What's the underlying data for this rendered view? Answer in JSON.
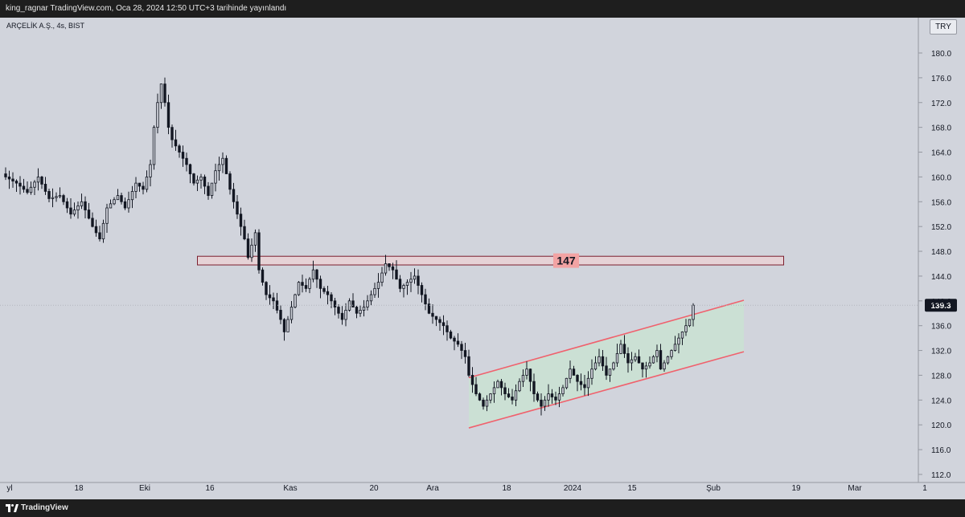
{
  "header": {
    "published_text": "king_ragnar TradingView.com, Oca 28, 2024 12:50 UTC+3 tarihinde yayınlandı"
  },
  "chart_header": {
    "symbol_text": "ARÇELİK A.Ş., 4s, BIST",
    "currency": "TRY"
  },
  "footer": {
    "brand": "TradingView",
    "logo_icon": "tradingview-logo-icon"
  },
  "colors": {
    "background": "#d1d4dc",
    "bar": "#131722",
    "channel_line": "#f0616d",
    "channel_fill": "#c9e6d0",
    "zone_fill": "#e6d2d6",
    "zone_border": "#7b1e2e",
    "zone_label_bg": "#f2a3a3",
    "price_label_bg": "#131722"
  },
  "chart_data": {
    "type": "candlestick",
    "symbol": "ARÇELİK A.Ş.",
    "interval": "4s",
    "exchange": "BIST",
    "currency": "TRY",
    "ylim": [
      117,
      183
    ],
    "y_ticks": [
      180.0,
      176.0,
      172.0,
      168.0,
      164.0,
      160.0,
      156.0,
      152.0,
      148.0,
      144.0,
      140.0,
      136.0,
      132.0,
      128.0,
      124.0,
      120.0,
      116.0,
      112.0
    ],
    "y_tick_labels": [
      "180.0",
      "176.0",
      "172.0",
      "168.0",
      "164.0",
      "160.0",
      "156.0",
      "152.0",
      "148.0",
      "144.0",
      "140.0",
      "136.0",
      "132.0",
      "128.0",
      "124.0",
      "120.0",
      "116.0",
      "112.0"
    ],
    "x_tick_labels": [
      "yl",
      "18",
      "Eki",
      "16",
      "Kas",
      "20",
      "Ara",
      "18",
      "2024",
      "15",
      "Şub",
      "19",
      "Mar",
      "1"
    ],
    "last_price": 139.3,
    "last_price_label": "139.3",
    "price_path": [
      [
        0,
        160
      ],
      [
        3,
        159
      ],
      [
        6,
        157.5
      ],
      [
        9,
        160
      ],
      [
        12,
        156.5
      ],
      [
        15,
        157
      ],
      [
        18,
        154
      ],
      [
        21,
        156
      ],
      [
        24,
        152
      ],
      [
        26,
        150
      ],
      [
        28,
        155
      ],
      [
        31,
        157
      ],
      [
        33,
        155
      ],
      [
        36,
        159
      ],
      [
        38,
        158
      ],
      [
        40,
        162
      ],
      [
        41,
        168
      ],
      [
        42,
        172
      ],
      [
        43,
        175
      ],
      [
        44,
        172
      ],
      [
        45,
        168
      ],
      [
        46,
        166
      ],
      [
        48,
        164
      ],
      [
        50,
        162
      ],
      [
        52,
        159
      ],
      [
        54,
        160
      ],
      [
        56,
        157
      ],
      [
        58,
        161
      ],
      [
        60,
        163
      ],
      [
        62,
        158
      ],
      [
        64,
        154
      ],
      [
        66,
        150
      ],
      [
        67,
        147
      ],
      [
        69,
        151
      ],
      [
        70,
        145
      ],
      [
        72,
        141
      ],
      [
        74,
        140
      ],
      [
        76,
        137
      ],
      [
        77,
        135
      ],
      [
        79,
        139
      ],
      [
        81,
        143
      ],
      [
        83,
        142
      ],
      [
        85,
        145
      ],
      [
        87,
        142
      ],
      [
        89,
        141
      ],
      [
        91,
        139
      ],
      [
        93,
        137
      ],
      [
        95,
        140
      ],
      [
        97,
        138
      ],
      [
        99,
        139
      ],
      [
        101,
        141
      ],
      [
        103,
        143
      ],
      [
        105,
        146
      ],
      [
        107,
        145
      ],
      [
        109,
        142
      ],
      [
        111,
        143
      ],
      [
        113,
        144
      ],
      [
        115,
        141
      ],
      [
        117,
        138
      ],
      [
        119,
        137
      ],
      [
        121,
        136
      ],
      [
        123,
        134
      ],
      [
        125,
        133
      ],
      [
        127,
        131
      ],
      [
        128,
        128
      ],
      [
        130,
        125
      ],
      [
        132,
        123
      ],
      [
        134,
        125
      ],
      [
        136,
        127
      ],
      [
        138,
        125
      ],
      [
        140,
        124
      ],
      [
        142,
        127
      ],
      [
        144,
        129
      ],
      [
        146,
        125
      ],
      [
        148,
        123
      ],
      [
        150,
        125
      ],
      [
        152,
        124
      ],
      [
        154,
        126
      ],
      [
        156,
        129
      ],
      [
        158,
        127
      ],
      [
        160,
        126
      ],
      [
        162,
        129
      ],
      [
        164,
        131
      ],
      [
        166,
        128
      ],
      [
        168,
        130
      ],
      [
        170,
        133
      ],
      [
        172,
        130
      ],
      [
        174,
        131
      ],
      [
        176,
        129
      ],
      [
        178,
        130
      ],
      [
        180,
        132
      ],
      [
        181,
        129
      ],
      [
        183,
        131
      ],
      [
        185,
        133
      ],
      [
        187,
        135
      ],
      [
        189,
        137
      ],
      [
        190,
        139.3
      ]
    ],
    "annotations": {
      "resistance_zone": {
        "low": 145.8,
        "high": 147.2,
        "label": "147",
        "start_bar": 53,
        "end_bar": 215
      },
      "channel": {
        "upper": [
          [
            128,
            127.6
          ],
          [
            204,
            140.1
          ]
        ],
        "lower": [
          [
            128,
            119.5
          ],
          [
            204,
            131.8
          ]
        ]
      }
    }
  }
}
